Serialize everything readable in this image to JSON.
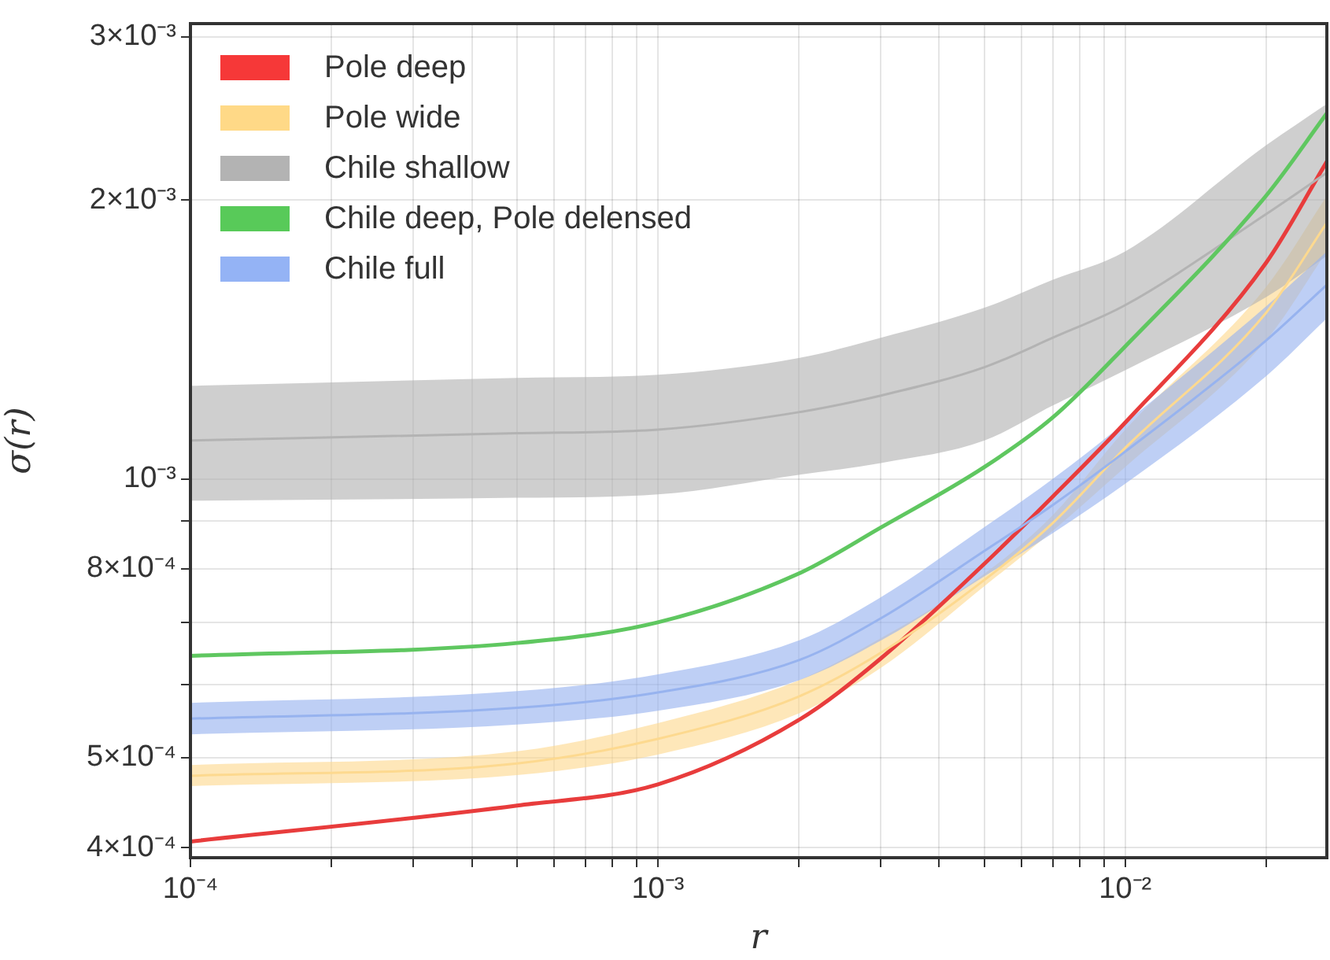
{
  "chart_data": {
    "type": "line",
    "xlabel": "r",
    "ylabel": "σ(r)",
    "log": "xy",
    "grid": true,
    "legend": "top left",
    "marker": "none",
    "x": [
      0.0001,
      0.0005,
      0.001,
      0.002,
      0.003,
      0.005,
      0.007,
      0.01,
      0.02,
      0.027
    ],
    "xlim": [
      0.0001,
      0.027
    ],
    "xticks": [
      {
        "value": 0.0001,
        "label": "10⁻⁴"
      },
      {
        "value": 0.0002,
        "label": null
      },
      {
        "value": 0.0003,
        "label": null
      },
      {
        "value": 0.0004,
        "label": null
      },
      {
        "value": 0.0005,
        "label": null
      },
      {
        "value": 0.0006,
        "label": null
      },
      {
        "value": 0.0007,
        "label": null
      },
      {
        "value": 0.0008,
        "label": null
      },
      {
        "value": 0.0009,
        "label": null
      },
      {
        "value": 0.001,
        "label": "10⁻³"
      },
      {
        "value": 0.002,
        "label": null
      },
      {
        "value": 0.003,
        "label": null
      },
      {
        "value": 0.004,
        "label": null
      },
      {
        "value": 0.005,
        "label": null
      },
      {
        "value": 0.006,
        "label": null
      },
      {
        "value": 0.007,
        "label": null
      },
      {
        "value": 0.008,
        "label": null
      },
      {
        "value": 0.009,
        "label": null
      },
      {
        "value": 0.01,
        "label": "10⁻²"
      },
      {
        "value": 0.02,
        "label": null
      }
    ],
    "ylim": [
      0.00039,
      0.0031
    ],
    "yticks": [
      {
        "value": 0.0004,
        "label": "4×10⁻⁴"
      },
      {
        "value": 0.0005,
        "label": "5×10⁻⁴"
      },
      {
        "value": 0.0006,
        "label": null
      },
      {
        "value": 0.0007,
        "label": null
      },
      {
        "value": 0.0008,
        "label": "8×10⁻⁴"
      },
      {
        "value": 0.0009,
        "label": null
      },
      {
        "value": 0.001,
        "label": "10⁻³"
      },
      {
        "value": 0.002,
        "label": "2×10⁻³"
      },
      {
        "value": 0.003,
        "label": "3×10⁻³"
      }
    ],
    "series": [
      {
        "name": "Pole deep",
        "color": "#e83c3c",
        "values": [
          0.000406,
          0.000444,
          0.000468,
          0.000549,
          0.00064,
          0.00081,
          0.000957,
          0.00115,
          0.00171,
          0.0022
        ]
      },
      {
        "name": "Pole wide",
        "color": "#fdd98f",
        "values": [
          0.000478,
          0.000493,
          0.000524,
          0.000582,
          0.000649,
          0.000778,
          0.000896,
          0.00108,
          0.00151,
          0.00189
        ],
        "lower": [
          0.000466,
          0.000479,
          0.000504,
          0.000558,
          0.000625,
          0.000766,
          0.000879,
          0.00103,
          0.00141,
          0.00176
        ],
        "upper": [
          0.000491,
          0.000508,
          0.000545,
          0.000606,
          0.000673,
          0.00079,
          0.000914,
          0.00113,
          0.00161,
          0.00202
        ]
      },
      {
        "name": "Chile shallow",
        "color": "#b3b3b3",
        "values": [
          0.0011,
          0.00112,
          0.00113,
          0.00118,
          0.00123,
          0.00132,
          0.00142,
          0.00154,
          0.00193,
          0.00214
        ],
        "lower": [
          0.000947,
          0.000954,
          0.000962,
          0.00101,
          0.00104,
          0.0011,
          0.0012,
          0.00131,
          0.00157,
          0.00174
        ],
        "upper": [
          0.00126,
          0.001285,
          0.001295,
          0.00135,
          0.00142,
          0.00153,
          0.00164,
          0.00176,
          0.00229,
          0.00254
        ]
      },
      {
        "name": "Chile deep, Pole delensed",
        "color": "#5fc760",
        "values": [
          0.000644,
          0.000665,
          0.0007,
          0.00079,
          0.000886,
          0.00103,
          0.001165,
          0.00139,
          0.00202,
          0.00248
        ]
      },
      {
        "name": "Chile full",
        "color": "#97b3ef",
        "values": [
          0.000551,
          0.000566,
          0.000588,
          0.000637,
          0.000707,
          0.000836,
          0.000937,
          0.00107,
          0.00141,
          0.00162
        ],
        "lower": [
          0.00053,
          0.000543,
          0.000562,
          0.000606,
          0.000669,
          0.000785,
          0.000874,
          0.000988,
          0.00129,
          0.00149
        ],
        "upper": [
          0.000573,
          0.00059,
          0.000615,
          0.000669,
          0.000745,
          0.000887,
          0.001,
          0.00115,
          0.001535,
          0.00176
        ]
      }
    ]
  }
}
